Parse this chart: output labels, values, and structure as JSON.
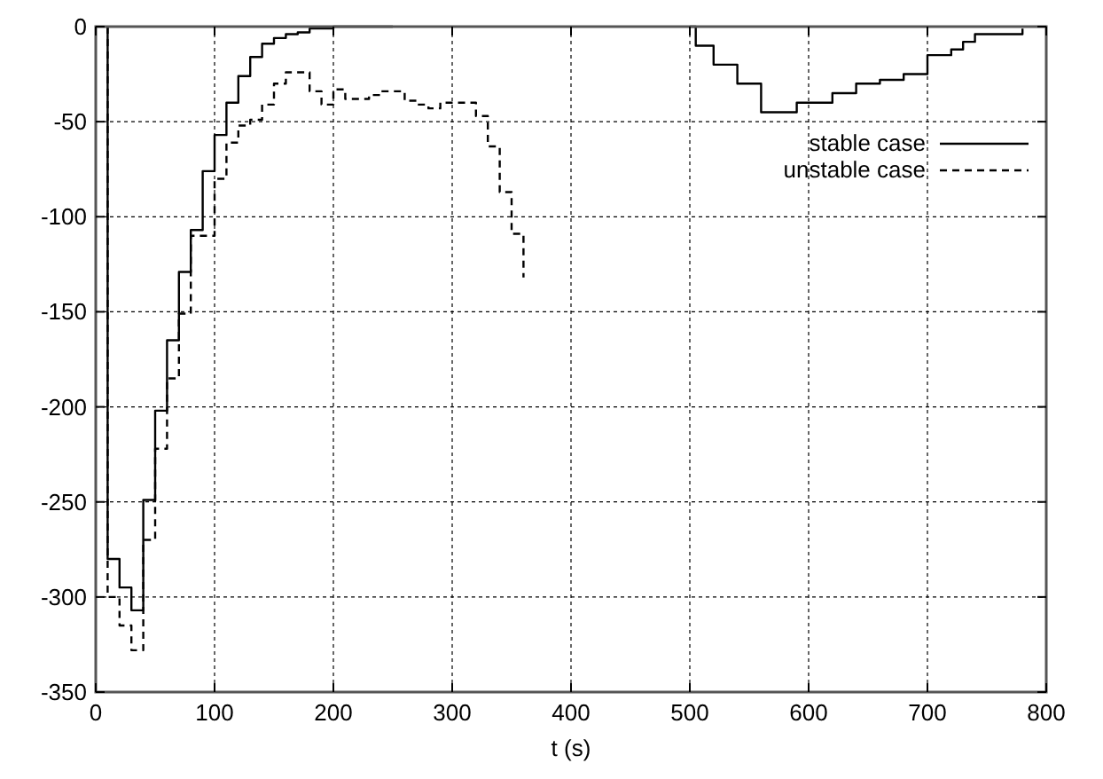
{
  "chart_data": {
    "type": "step",
    "xlabel": "t (s)",
    "xlim": [
      0,
      800
    ],
    "xticks": [
      0,
      100,
      200,
      300,
      400,
      500,
      600,
      700,
      800
    ],
    "ylim": [
      -350,
      0
    ],
    "yticks": [
      -350,
      -300,
      -250,
      -200,
      -150,
      -100,
      -50,
      0
    ],
    "grid": true,
    "legend": "top right",
    "series": [
      {
        "name": "stable case",
        "color": "#000000",
        "line_style": "solid",
        "x": [
          10,
          10,
          20,
          30,
          40,
          50,
          60,
          70,
          80,
          90,
          100,
          110,
          120,
          130,
          140,
          150,
          160,
          170,
          180,
          200,
          250,
          260,
          500,
          505,
          520,
          540,
          560,
          590,
          620,
          640,
          660,
          680,
          700,
          720,
          730,
          740,
          780
        ],
        "values": [
          0,
          -280,
          -295,
          -307,
          -249,
          -202,
          -165,
          -129,
          -107,
          -76,
          -57,
          -40,
          -26,
          -16,
          -9,
          -6,
          -4,
          -3,
          -1,
          0,
          0,
          null,
          0,
          -10,
          -20,
          -30,
          -45,
          -40,
          -35,
          -30,
          -28,
          -25,
          -15,
          -12,
          -8,
          -4,
          -1
        ]
      },
      {
        "name": "unstable case",
        "color": "#000000",
        "line_style": "dashed",
        "x": [
          10,
          10,
          20,
          30,
          40,
          50,
          60,
          70,
          80,
          100,
          110,
          120,
          130,
          140,
          150,
          160,
          180,
          190,
          200,
          210,
          230,
          240,
          260,
          270,
          280,
          290,
          320,
          330,
          340,
          350,
          360
        ],
        "values": [
          0,
          -300,
          -315,
          -328,
          -270,
          -222,
          -185,
          -151,
          -110,
          -80,
          -61,
          -52,
          -49,
          -41,
          -30,
          -24,
          -34,
          -41,
          -33,
          -38,
          -36,
          -34,
          -39,
          -41,
          -43,
          -40,
          -47,
          -63,
          -87,
          -109,
          -132
        ]
      }
    ]
  }
}
